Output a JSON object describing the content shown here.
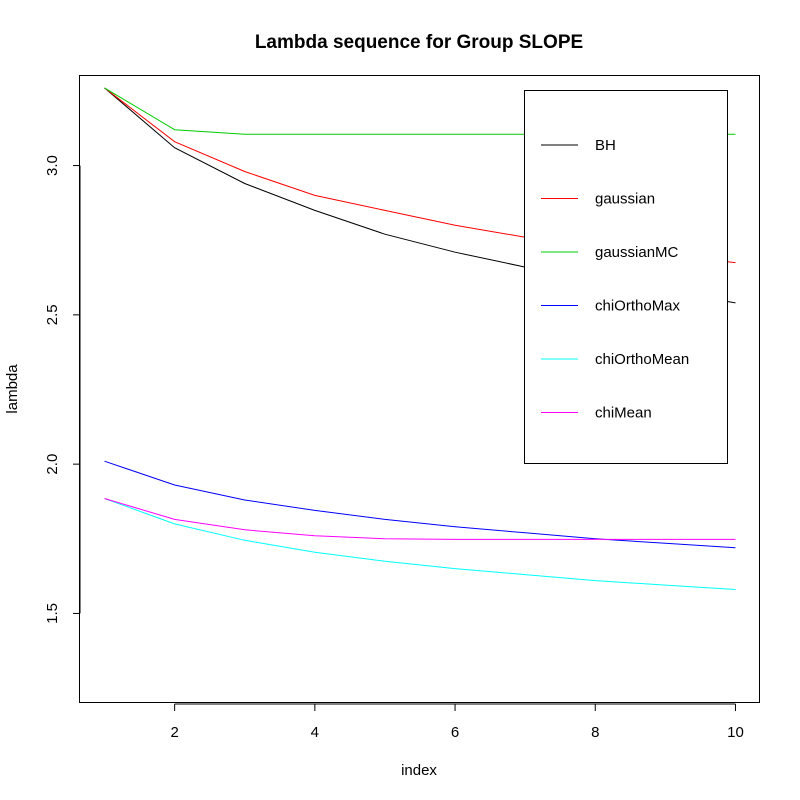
{
  "chart_data": {
    "type": "line",
    "title": "Lambda sequence for Group SLOPE",
    "xlabel": "index",
    "ylabel": "lambda",
    "xlim": [
      0.65,
      10.35
    ],
    "ylim": [
      1.2,
      3.3
    ],
    "xticks": [
      2,
      4,
      6,
      8,
      10
    ],
    "yticks": [
      1.5,
      2.0,
      2.5,
      3.0
    ],
    "xtick_labels": [
      "2",
      "4",
      "6",
      "8",
      "10"
    ],
    "ytick_labels": [
      "1.5",
      "2.0",
      "2.5",
      "3.0"
    ],
    "grid": false,
    "legend_position": "top-right",
    "x": [
      1,
      2,
      3,
      4,
      5,
      6,
      7,
      8,
      9,
      10
    ],
    "series": [
      {
        "name": "BH",
        "color": "#000000",
        "values": [
          3.26,
          3.06,
          2.94,
          2.85,
          2.77,
          2.71,
          2.66,
          2.62,
          2.58,
          2.54
        ]
      },
      {
        "name": "gaussian",
        "color": "#ff0000",
        "values": [
          3.26,
          3.08,
          2.98,
          2.9,
          2.85,
          2.8,
          2.76,
          2.73,
          2.7,
          2.675
        ]
      },
      {
        "name": "gaussianMC",
        "color": "#00cd00",
        "values": [
          3.26,
          3.12,
          3.105,
          3.105,
          3.105,
          3.105,
          3.105,
          3.105,
          3.105,
          3.105
        ]
      },
      {
        "name": "chiOrthoMax",
        "color": "#0000ff",
        "values": [
          2.01,
          1.93,
          1.88,
          1.845,
          1.815,
          1.79,
          1.77,
          1.75,
          1.735,
          1.72
        ]
      },
      {
        "name": "chiOrthoMean",
        "color": "#00ffff",
        "values": [
          1.885,
          1.8,
          1.745,
          1.705,
          1.675,
          1.65,
          1.63,
          1.61,
          1.595,
          1.58
        ]
      },
      {
        "name": "chiMean",
        "color": "#ff00ff",
        "values": [
          1.885,
          1.815,
          1.78,
          1.76,
          1.75,
          1.748,
          1.748,
          1.748,
          1.748,
          1.748
        ]
      }
    ]
  }
}
